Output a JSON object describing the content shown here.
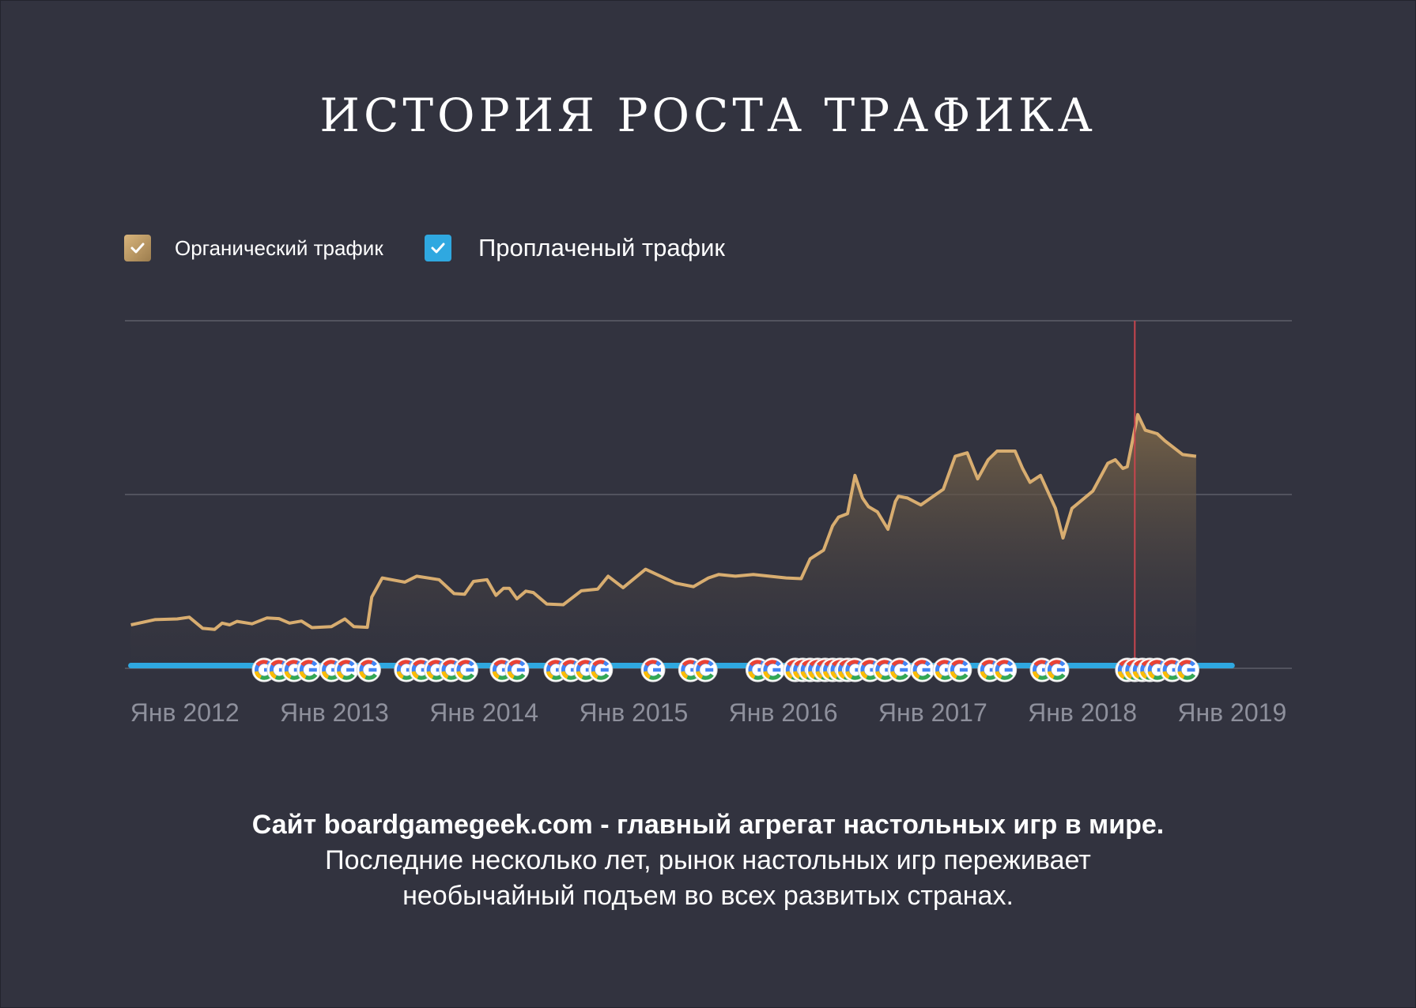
{
  "title": "ИСТОРИЯ РОСТА ТРАФИКА",
  "legend": [
    {
      "label": "Органический трафик",
      "color": "#c29e66",
      "checked": true,
      "icon": "checkmark-icon"
    },
    {
      "label": "Проплаченый трафик",
      "color": "#2fa8e0",
      "checked": true,
      "icon": "checkmark-icon"
    }
  ],
  "caption": {
    "line1": "Сайт boardgamegeek.com - главный агрегат настольных игр в мире.",
    "line2": "Последние несколько лет, рынок настольных игр переживает",
    "line3": "необычайный подъем во всех развитых странах."
  },
  "colors": {
    "background": "#32333f",
    "organic_line": "#d8ad70",
    "organic_fill_top": "#7a6548",
    "paid_line": "#2fa8e0",
    "gridline": "#5d5e69",
    "marker_line": "#c8454e",
    "tick_label": "#8e909c"
  },
  "chart_data": {
    "type": "area",
    "xlim": [
      2011.6,
      2019.4
    ],
    "ylim": [
      0,
      100
    ],
    "gridlines": true,
    "y_tick_labels_shown": false,
    "x_ticks": [
      {
        "label": "Янв 2012",
        "x": 2012.0
      },
      {
        "label": "Янв 2013",
        "x": 2013.0
      },
      {
        "label": "Янв 2014",
        "x": 2014.0
      },
      {
        "label": "Янв 2015",
        "x": 2015.0
      },
      {
        "label": "Янв 2016",
        "x": 2016.0
      },
      {
        "label": "Янв 2017",
        "x": 2017.0
      },
      {
        "label": "Янв 2018",
        "x": 2018.0
      },
      {
        "label": "Янв 2019",
        "x": 2019.0
      }
    ],
    "series": [
      {
        "name": "Органический трафик",
        "style": "area",
        "points": [
          [
            2011.64,
            12.5
          ],
          [
            2011.8,
            14
          ],
          [
            2011.95,
            14.2
          ],
          [
            2012.03,
            14.7
          ],
          [
            2012.12,
            11.5
          ],
          [
            2012.2,
            11.2
          ],
          [
            2012.25,
            13
          ],
          [
            2012.3,
            12.5
          ],
          [
            2012.35,
            13.5
          ],
          [
            2012.45,
            12.8
          ],
          [
            2012.55,
            14.5
          ],
          [
            2012.63,
            14.3
          ],
          [
            2012.7,
            13
          ],
          [
            2012.78,
            13.6
          ],
          [
            2012.85,
            11.7
          ],
          [
            2012.98,
            12
          ],
          [
            2013.07,
            14.2
          ],
          [
            2013.13,
            12
          ],
          [
            2013.22,
            11.8
          ],
          [
            2013.25,
            20.5
          ],
          [
            2013.32,
            26
          ],
          [
            2013.47,
            24.8
          ],
          [
            2013.55,
            26.5
          ],
          [
            2013.7,
            25.5
          ],
          [
            2013.8,
            21.5
          ],
          [
            2013.87,
            21.3
          ],
          [
            2013.93,
            25
          ],
          [
            2014.02,
            25.5
          ],
          [
            2014.08,
            21
          ],
          [
            2014.13,
            23
          ],
          [
            2014.17,
            23
          ],
          [
            2014.22,
            20
          ],
          [
            2014.28,
            22.2
          ],
          [
            2014.33,
            21.8
          ],
          [
            2014.42,
            18.5
          ],
          [
            2014.53,
            18.3
          ],
          [
            2014.65,
            22.3
          ],
          [
            2014.76,
            22.8
          ],
          [
            2014.83,
            26.5
          ],
          [
            2014.93,
            23.2
          ],
          [
            2015.08,
            28.5
          ],
          [
            2015.28,
            24.5
          ],
          [
            2015.4,
            23.5
          ],
          [
            2015.5,
            26
          ],
          [
            2015.57,
            27
          ],
          [
            2015.68,
            26.5
          ],
          [
            2015.8,
            27
          ],
          [
            2016.02,
            26
          ],
          [
            2016.12,
            25.8
          ],
          [
            2016.18,
            31.5
          ],
          [
            2016.27,
            34
          ],
          [
            2016.33,
            41
          ],
          [
            2016.37,
            43.5
          ],
          [
            2016.43,
            44.5
          ],
          [
            2016.48,
            55.5
          ],
          [
            2016.53,
            49
          ],
          [
            2016.57,
            46.5
          ],
          [
            2016.63,
            45
          ],
          [
            2016.7,
            40
          ],
          [
            2016.75,
            48
          ],
          [
            2016.77,
            49.5
          ],
          [
            2016.83,
            49
          ],
          [
            2016.92,
            47
          ],
          [
            2017.02,
            50
          ],
          [
            2017.07,
            51.5
          ],
          [
            2017.15,
            61
          ],
          [
            2017.23,
            62
          ],
          [
            2017.3,
            54.5
          ],
          [
            2017.37,
            60
          ],
          [
            2017.43,
            62.5
          ],
          [
            2017.55,
            62.5
          ],
          [
            2017.6,
            57.5
          ],
          [
            2017.65,
            53.5
          ],
          [
            2017.72,
            55.5
          ],
          [
            2017.82,
            46
          ],
          [
            2017.87,
            37.5
          ],
          [
            2017.93,
            46
          ],
          [
            2018.07,
            51
          ],
          [
            2018.17,
            59
          ],
          [
            2018.22,
            60
          ],
          [
            2018.27,
            57.5
          ],
          [
            2018.3,
            58
          ],
          [
            2018.37,
            73
          ],
          [
            2018.42,
            68.5
          ],
          [
            2018.5,
            67.5
          ],
          [
            2018.55,
            65.5
          ],
          [
            2018.67,
            61.5
          ],
          [
            2018.76,
            61
          ]
        ]
      },
      {
        "name": "Проплаченый трафик",
        "style": "line",
        "points": [
          [
            2011.64,
            0.8
          ],
          [
            2019.0,
            0.8
          ]
        ]
      }
    ],
    "marker": {
      "x": 2018.35,
      "icon": "red-vertical-line"
    },
    "google_update_icons": {
      "icon": "google-g-icon",
      "x": [
        2012.53,
        2012.63,
        2012.73,
        2012.83,
        2012.98,
        2013.08,
        2013.23,
        2013.48,
        2013.58,
        2013.68,
        2013.78,
        2013.88,
        2014.12,
        2014.22,
        2014.48,
        2014.58,
        2014.68,
        2014.78,
        2015.13,
        2015.38,
        2015.48,
        2015.83,
        2015.93,
        2016.08,
        2016.13,
        2016.18,
        2016.23,
        2016.28,
        2016.33,
        2016.38,
        2016.43,
        2016.48,
        2016.58,
        2016.68,
        2016.78,
        2016.93,
        2017.08,
        2017.18,
        2017.38,
        2017.48,
        2017.73,
        2017.83,
        2018.3,
        2018.35,
        2018.4,
        2018.45,
        2018.5,
        2018.6,
        2018.7
      ]
    }
  }
}
